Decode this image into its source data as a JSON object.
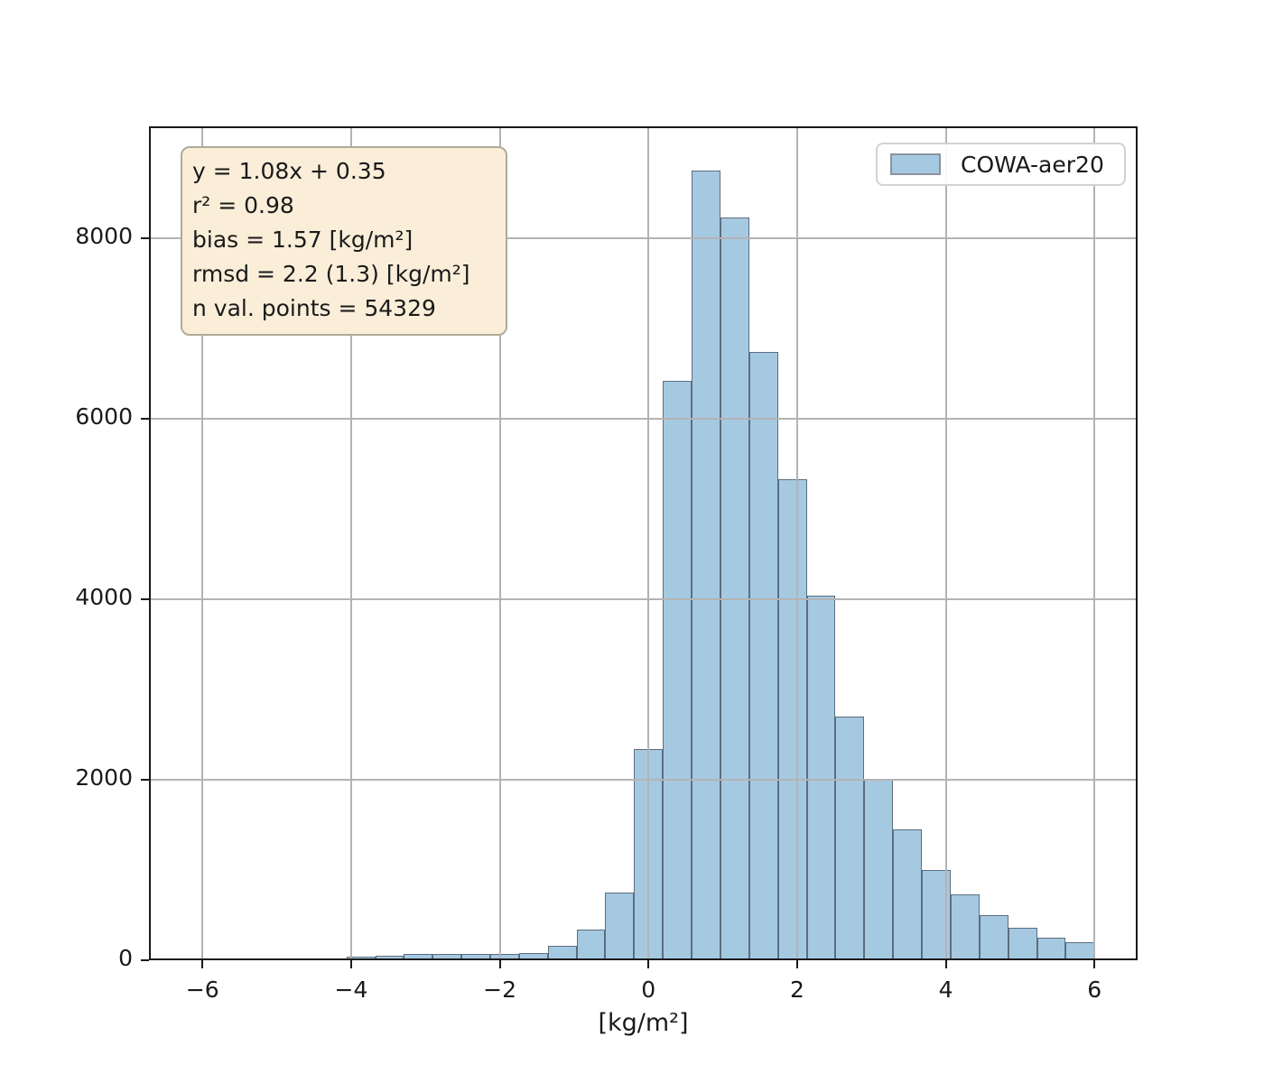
{
  "figure": {
    "stats_box": {
      "lines": [
        "y = 1.08x + 0.35",
        "r² = 0.98",
        "bias = 1.57 [kg/m²]",
        "rmsd = 2.2 (1.3) [kg/m²]",
        "n val. points = 54329"
      ],
      "fill": "#faeed9",
      "border_color": "#b1aa99"
    },
    "legend": {
      "label": "COWA-aer20",
      "patch_fill": "#a6c9e2",
      "patch_border": "#8a939d"
    }
  },
  "chart_data": {
    "type": "bar",
    "subtype": "histogram",
    "title": "",
    "xlabel": "[kg/m²]",
    "ylabel": "",
    "series_name": "COWA-aer20",
    "xlim": [
      -6.72,
      6.58
    ],
    "ylim": [
      0,
      9240
    ],
    "x_ticks": [
      -6,
      -4,
      -2,
      0,
      2,
      4,
      6
    ],
    "x_tick_labels": [
      "−6",
      "−4",
      "−2",
      "0",
      "2",
      "4",
      "6"
    ],
    "y_ticks": [
      0,
      2000,
      4000,
      6000,
      8000
    ],
    "y_tick_labels": [
      "0",
      "2000",
      "4000",
      "6000",
      "8000"
    ],
    "grid": true,
    "grid_color": "#b3b3b3",
    "grid_above_bars": true,
    "legend_position": "upper right",
    "bar_fill": "#a6c9e2",
    "bar_edge": "rgba(30,35,42,0.55)",
    "bin_edges": [
      -6.0,
      -5.613,
      -5.226,
      -4.839,
      -4.452,
      -4.065,
      -3.677,
      -3.29,
      -2.903,
      -2.516,
      -2.129,
      -1.742,
      -1.355,
      -0.968,
      -0.581,
      -0.194,
      0.194,
      0.581,
      0.968,
      1.355,
      1.742,
      2.129,
      2.516,
      2.903,
      3.29,
      3.677,
      4.065,
      4.452,
      4.839,
      5.226,
      5.613,
      6.0
    ],
    "counts": [
      5,
      10,
      15,
      20,
      25,
      40,
      55,
      70,
      75,
      70,
      70,
      85,
      160,
      340,
      750,
      2340,
      6420,
      8750,
      8230,
      6740,
      5330,
      4040,
      2700,
      2000,
      1450,
      1000,
      730,
      500,
      360,
      250,
      200
    ]
  }
}
